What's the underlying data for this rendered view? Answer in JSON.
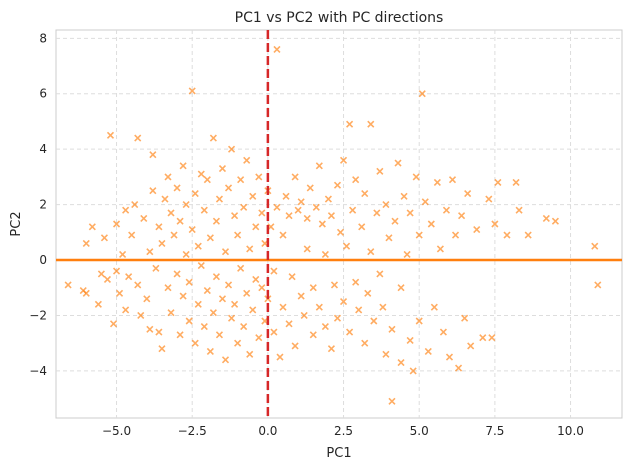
{
  "chart_data": {
    "type": "scatter",
    "title": "PC1 vs PC2 with PC directions",
    "xlabel": "PC1",
    "ylabel": "PC2",
    "xlim": [
      -7.0,
      11.7
    ],
    "ylim": [
      -5.7,
      8.3
    ],
    "xticks": [
      -5.0,
      -2.5,
      0.0,
      2.5,
      5.0,
      7.5,
      10.0
    ],
    "xtick_labels": [
      "−5.0",
      "−2.5",
      "0.0",
      "2.5",
      "5.0",
      "7.5",
      "10.0"
    ],
    "yticks": [
      -4,
      -2,
      0,
      2,
      4,
      6,
      8
    ],
    "ytick_labels": [
      "−4",
      "−2",
      "0",
      "2",
      "4",
      "6",
      "8"
    ],
    "grid": true,
    "marker": "x",
    "point_color": "#ff7f0e",
    "reference_lines": [
      {
        "orientation": "horizontal",
        "value": 0,
        "style": "solid",
        "color": "#ff7f0e"
      },
      {
        "orientation": "vertical",
        "value": 0,
        "style": "dashed",
        "color": "#d62728"
      }
    ],
    "points": [
      [
        -6.6,
        -0.9
      ],
      [
        -6.1,
        -1.1
      ],
      [
        -6.0,
        -1.2
      ],
      [
        -6.0,
        0.6
      ],
      [
        -5.8,
        1.2
      ],
      [
        -5.6,
        -1.6
      ],
      [
        -5.5,
        -0.5
      ],
      [
        -5.4,
        0.8
      ],
      [
        -5.3,
        -0.7
      ],
      [
        -5.2,
        4.5
      ],
      [
        -5.1,
        -2.3
      ],
      [
        -5.0,
        1.3
      ],
      [
        -5.0,
        -0.4
      ],
      [
        -4.9,
        -1.2
      ],
      [
        -4.8,
        0.2
      ],
      [
        -4.7,
        1.8
      ],
      [
        -4.7,
        -1.8
      ],
      [
        -4.6,
        -0.6
      ],
      [
        -4.5,
        0.9
      ],
      [
        -4.4,
        2.0
      ],
      [
        -4.3,
        4.4
      ],
      [
        -4.3,
        -0.9
      ],
      [
        -4.2,
        -2.0
      ],
      [
        -4.1,
        1.5
      ],
      [
        -4.0,
        -1.4
      ],
      [
        -3.9,
        0.3
      ],
      [
        -3.9,
        -2.5
      ],
      [
        -3.8,
        3.8
      ],
      [
        -3.8,
        2.5
      ],
      [
        -3.7,
        -0.3
      ],
      [
        -3.6,
        1.2
      ],
      [
        -3.6,
        -2.6
      ],
      [
        -3.5,
        -3.2
      ],
      [
        -3.5,
        0.6
      ],
      [
        -3.4,
        2.2
      ],
      [
        -3.3,
        -1.0
      ],
      [
        -3.3,
        3.0
      ],
      [
        -3.2,
        -1.9
      ],
      [
        -3.2,
        1.7
      ],
      [
        -3.1,
        0.9
      ],
      [
        -3.0,
        -0.5
      ],
      [
        -3.0,
        2.6
      ],
      [
        -2.9,
        -2.7
      ],
      [
        -2.9,
        1.4
      ],
      [
        -2.8,
        3.4
      ],
      [
        -2.8,
        -1.3
      ],
      [
        -2.7,
        0.2
      ],
      [
        -2.7,
        2.0
      ],
      [
        -2.6,
        -2.2
      ],
      [
        -2.6,
        -0.8
      ],
      [
        -2.5,
        6.1
      ],
      [
        -2.5,
        1.1
      ],
      [
        -2.4,
        -3.0
      ],
      [
        -2.4,
        2.4
      ],
      [
        -2.3,
        -1.6
      ],
      [
        -2.3,
        0.5
      ],
      [
        -2.2,
        3.1
      ],
      [
        -2.2,
        -0.2
      ],
      [
        -2.1,
        -2.4
      ],
      [
        -2.1,
        1.8
      ],
      [
        -2.0,
        -1.1
      ],
      [
        -2.0,
        2.9
      ],
      [
        -1.9,
        0.8
      ],
      [
        -1.9,
        -3.3
      ],
      [
        -1.8,
        -1.9
      ],
      [
        -1.8,
        4.4
      ],
      [
        -1.7,
        1.4
      ],
      [
        -1.7,
        -0.6
      ],
      [
        -1.6,
        2.2
      ],
      [
        -1.6,
        -2.7
      ],
      [
        -1.5,
        -1.4
      ],
      [
        -1.5,
        3.3
      ],
      [
        -1.4,
        0.3
      ],
      [
        -1.4,
        -3.6
      ],
      [
        -1.3,
        2.6
      ],
      [
        -1.3,
        -0.9
      ],
      [
        -1.2,
        -2.1
      ],
      [
        -1.2,
        4.0
      ],
      [
        -1.1,
        1.6
      ],
      [
        -1.1,
        -1.6
      ],
      [
        -1.0,
        0.9
      ],
      [
        -1.0,
        -3.0
      ],
      [
        -0.9,
        2.9
      ],
      [
        -0.9,
        -0.3
      ],
      [
        -0.8,
        -2.4
      ],
      [
        -0.8,
        1.9
      ],
      [
        -0.7,
        -1.2
      ],
      [
        -0.7,
        3.6
      ],
      [
        -0.6,
        0.4
      ],
      [
        -0.6,
        -3.4
      ],
      [
        -0.5,
        2.3
      ],
      [
        -0.5,
        -1.8
      ],
      [
        -0.4,
        1.2
      ],
      [
        -0.4,
        -0.7
      ],
      [
        -0.3,
        3.0
      ],
      [
        -0.3,
        -2.8
      ],
      [
        -0.2,
        -1.0
      ],
      [
        -0.2,
        1.7
      ],
      [
        -0.1,
        -2.2
      ],
      [
        -0.1,
        0.6
      ],
      [
        0.0,
        2.5
      ],
      [
        0.0,
        -1.4
      ],
      [
        0.1,
        1.2
      ],
      [
        0.2,
        -0.4
      ],
      [
        0.2,
        -2.6
      ],
      [
        0.3,
        7.6
      ],
      [
        0.3,
        1.9
      ],
      [
        0.4,
        -3.5
      ],
      [
        0.5,
        0.9
      ],
      [
        0.5,
        -1.7
      ],
      [
        0.6,
        2.3
      ],
      [
        0.7,
        -2.3
      ],
      [
        0.7,
        1.6
      ],
      [
        0.8,
        -0.6
      ],
      [
        0.9,
        3.0
      ],
      [
        0.9,
        -3.1
      ],
      [
        1.0,
        1.8
      ],
      [
        1.1,
        -1.3
      ],
      [
        1.1,
        2.1
      ],
      [
        1.2,
        -2.0
      ],
      [
        1.3,
        1.5
      ],
      [
        1.3,
        0.4
      ],
      [
        1.4,
        2.6
      ],
      [
        1.5,
        -1.0
      ],
      [
        1.5,
        -2.7
      ],
      [
        1.6,
        1.9
      ],
      [
        1.7,
        -1.7
      ],
      [
        1.7,
        3.4
      ],
      [
        1.8,
        1.3
      ],
      [
        1.9,
        -2.4
      ],
      [
        1.9,
        0.2
      ],
      [
        2.0,
        2.2
      ],
      [
        2.1,
        -3.2
      ],
      [
        2.1,
        1.6
      ],
      [
        2.2,
        -0.9
      ],
      [
        2.3,
        2.7
      ],
      [
        2.3,
        -2.1
      ],
      [
        2.4,
        1.0
      ],
      [
        2.5,
        -1.5
      ],
      [
        2.5,
        3.6
      ],
      [
        2.6,
        0.5
      ],
      [
        2.7,
        -2.6
      ],
      [
        2.7,
        4.9
      ],
      [
        2.8,
        1.8
      ],
      [
        2.9,
        -0.8
      ],
      [
        2.9,
        2.9
      ],
      [
        3.0,
        -1.8
      ],
      [
        3.1,
        1.2
      ],
      [
        3.2,
        -3.0
      ],
      [
        3.2,
        2.4
      ],
      [
        3.3,
        -1.2
      ],
      [
        3.4,
        4.9
      ],
      [
        3.4,
        0.3
      ],
      [
        3.5,
        -2.2
      ],
      [
        3.6,
        1.7
      ],
      [
        3.7,
        -0.5
      ],
      [
        3.7,
        3.2
      ],
      [
        3.8,
        -1.7
      ],
      [
        3.9,
        -3.4
      ],
      [
        3.9,
        2.0
      ],
      [
        4.0,
        0.8
      ],
      [
        4.1,
        -5.1
      ],
      [
        4.1,
        -2.5
      ],
      [
        4.2,
        1.4
      ],
      [
        4.3,
        3.5
      ],
      [
        4.4,
        -1.0
      ],
      [
        4.4,
        -3.7
      ],
      [
        4.5,
        2.3
      ],
      [
        4.6,
        0.2
      ],
      [
        4.7,
        -2.9
      ],
      [
        4.7,
        1.7
      ],
      [
        4.8,
        -4.0
      ],
      [
        4.9,
        3.0
      ],
      [
        5.0,
        0.9
      ],
      [
        5.0,
        -2.2
      ],
      [
        5.1,
        6.0
      ],
      [
        5.2,
        2.1
      ],
      [
        5.3,
        -3.3
      ],
      [
        5.4,
        1.3
      ],
      [
        5.5,
        -1.7
      ],
      [
        5.6,
        2.8
      ],
      [
        5.7,
        0.4
      ],
      [
        5.8,
        -2.6
      ],
      [
        5.9,
        1.8
      ],
      [
        6.0,
        -3.5
      ],
      [
        6.1,
        2.9
      ],
      [
        6.2,
        0.9
      ],
      [
        6.3,
        -3.9
      ],
      [
        6.4,
        1.6
      ],
      [
        6.5,
        -2.1
      ],
      [
        6.6,
        2.4
      ],
      [
        6.7,
        -3.1
      ],
      [
        6.9,
        1.1
      ],
      [
        7.1,
        -2.8
      ],
      [
        7.3,
        2.2
      ],
      [
        7.4,
        -2.8
      ],
      [
        7.5,
        1.3
      ],
      [
        7.6,
        2.8
      ],
      [
        7.9,
        0.9
      ],
      [
        8.2,
        2.8
      ],
      [
        8.3,
        1.8
      ],
      [
        8.6,
        0.9
      ],
      [
        9.2,
        1.5
      ],
      [
        9.5,
        1.4
      ],
      [
        10.8,
        0.5
      ],
      [
        10.9,
        -0.9
      ]
    ]
  }
}
